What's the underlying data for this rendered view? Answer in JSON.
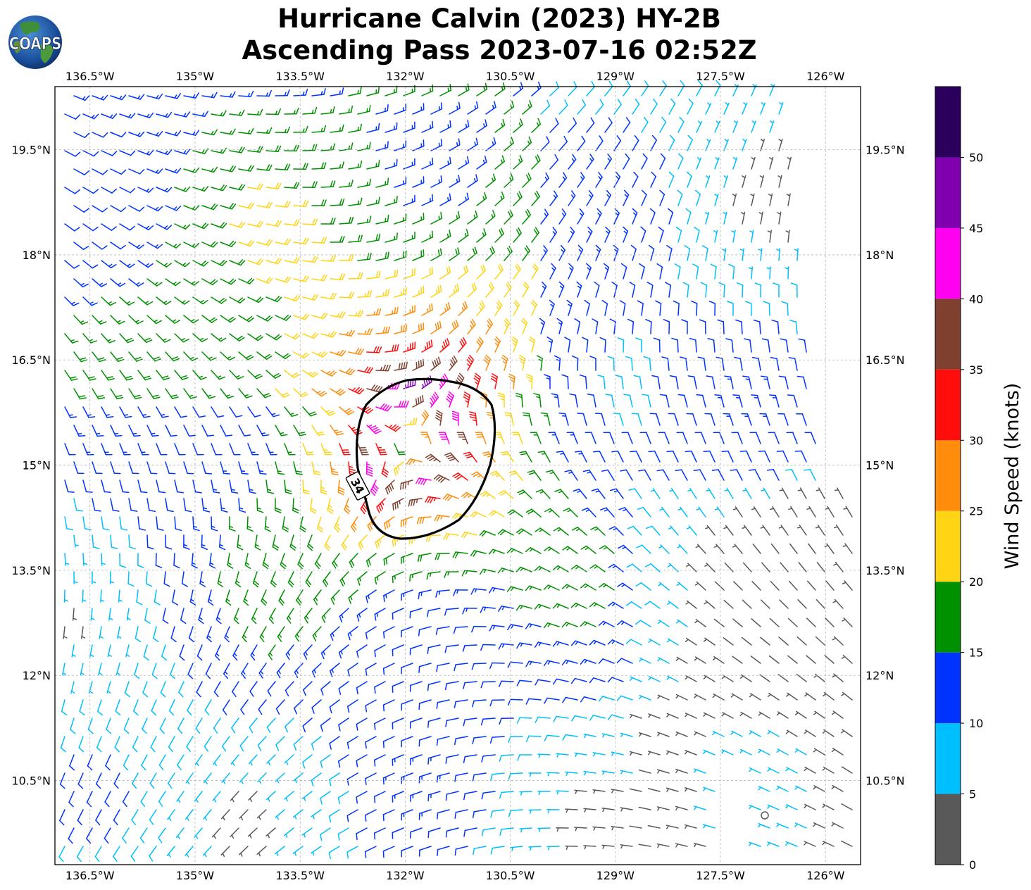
{
  "title": {
    "line1": "Hurricane Calvin (2023) HY-2B",
    "line2": "Ascending Pass 2023-07-16 02:52Z"
  },
  "logo": {
    "text": "COAPS"
  },
  "map": {
    "lon_range": [
      -137.0,
      -125.5
    ],
    "lat_range": [
      9.3,
      20.4
    ],
    "storm_center": {
      "lon": -131.95,
      "lat": 15.3
    },
    "x_ticks": [
      {
        "lon": -136.5,
        "label": "136.5°W"
      },
      {
        "lon": -135.0,
        "label": "135°W"
      },
      {
        "lon": -133.5,
        "label": "133.5°W"
      },
      {
        "lon": -132.0,
        "label": "132°W"
      },
      {
        "lon": -130.5,
        "label": "130.5°W"
      },
      {
        "lon": -129.0,
        "label": "129°W"
      },
      {
        "lon": -127.5,
        "label": "127.5°W"
      },
      {
        "lon": -126.0,
        "label": "126°W"
      }
    ],
    "y_ticks": [
      {
        "lat": 19.5,
        "label": "19.5°N"
      },
      {
        "lat": 18.0,
        "label": "18°N"
      },
      {
        "lat": 16.5,
        "label": "16.5°N"
      },
      {
        "lat": 15.0,
        "label": "15°N"
      },
      {
        "lat": 13.5,
        "label": "13.5°N"
      },
      {
        "lat": 12.0,
        "label": "12°N"
      },
      {
        "lat": 10.5,
        "label": "10.5°N"
      }
    ],
    "gridlines": true,
    "contour": {
      "label": "34",
      "units": "knots"
    },
    "barbs": "wind barbs colored by speed (cyclonic flow around the center)"
  },
  "colorbar": {
    "label": "Wind Speed (knots)",
    "bins": [
      {
        "from": 0,
        "to": 5,
        "color": "#595959"
      },
      {
        "from": 5,
        "to": 10,
        "color": "#00BFFF"
      },
      {
        "from": 10,
        "to": 15,
        "color": "#0033FF"
      },
      {
        "from": 15,
        "to": 20,
        "color": "#009100"
      },
      {
        "from": 20,
        "to": 25,
        "color": "#FFD414"
      },
      {
        "from": 25,
        "to": 30,
        "color": "#FF8C0A"
      },
      {
        "from": 30,
        "to": 35,
        "color": "#FF0D0D"
      },
      {
        "from": 35,
        "to": 40,
        "color": "#804030"
      },
      {
        "from": 40,
        "to": 45,
        "color": "#FF00F0"
      },
      {
        "from": 45,
        "to": 50,
        "color": "#8000B0"
      },
      {
        "from": 50,
        "to": 55,
        "color": "#2A005C"
      }
    ],
    "tick_labels": [
      "0",
      "5",
      "10",
      "15",
      "20",
      "25",
      "30",
      "35",
      "40",
      "45",
      "50"
    ]
  }
}
